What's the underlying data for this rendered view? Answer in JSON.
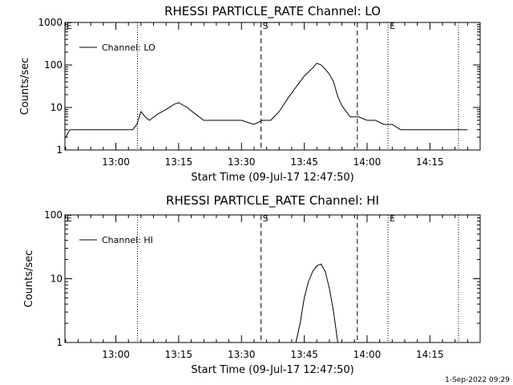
{
  "footer": "1-Sep-2022 09:29",
  "chart_data": [
    {
      "type": "line",
      "title": "RHESSI PARTICLE_RATE Channel: LO",
      "xlabel": "Start Time (09-Jul-17 12:47:50)",
      "ylabel": "Counts/sec",
      "yscale": "log",
      "ylim": [
        1,
        1000
      ],
      "y_ticks": [
        "1",
        "10",
        "100",
        "1000"
      ],
      "xlim": [
        "12:47:50",
        "14:27:00"
      ],
      "x_ticks": [
        "13:00",
        "13:15",
        "13:30",
        "13:45",
        "14:00",
        "14:15"
      ],
      "legend": "top-left",
      "series": [
        {
          "name": "Channel: LO",
          "x": [
            "12:48",
            "12:49",
            "12:50",
            "12:52",
            "12:54",
            "12:56",
            "12:58",
            "13:00",
            "13:02",
            "13:04",
            "13:05",
            "13:06",
            "13:07",
            "13:08",
            "13:10",
            "13:12",
            "13:14",
            "13:15",
            "13:17",
            "13:19",
            "13:21",
            "13:24",
            "13:27",
            "13:30",
            "13:33",
            "13:35",
            "13:37",
            "13:39",
            "13:41",
            "13:43",
            "13:45",
            "13:47",
            "13:48",
            "13:49",
            "13:50",
            "13:51",
            "13:52",
            "13:53",
            "13:54",
            "13:55",
            "13:56",
            "13:58",
            "14:00",
            "14:02",
            "14:04",
            "14:06",
            "14:08",
            "14:10",
            "14:12",
            "14:14",
            "14:16",
            "14:18",
            "14:20",
            "14:22",
            "14:24"
          ],
          "values": [
            2,
            3,
            3,
            3,
            3,
            3,
            3,
            3,
            3,
            3,
            4,
            8,
            6,
            5,
            7,
            9,
            12,
            13,
            10,
            7,
            5,
            5,
            5,
            5,
            4,
            5,
            5,
            8,
            16,
            30,
            55,
            85,
            110,
            100,
            80,
            60,
            40,
            18,
            11,
            8,
            6,
            6,
            5,
            5,
            4,
            4,
            3,
            3,
            3,
            3,
            3,
            3,
            3,
            3,
            3
          ]
        }
      ],
      "annotations": [
        {
          "label": "E",
          "x": "12:47:50",
          "style": "dotted"
        },
        {
          "label": "",
          "x": "13:05:10",
          "style": "dotted"
        },
        {
          "label": "S",
          "x": "13:34:40",
          "style": "dashed"
        },
        {
          "label": "",
          "x": "13:57:40",
          "style": "dashed"
        },
        {
          "label": "E",
          "x": "14:05:00",
          "style": "dotted"
        },
        {
          "label": "",
          "x": "14:21:50",
          "style": "dotted"
        }
      ]
    },
    {
      "type": "line",
      "title": "RHESSI PARTICLE_RATE Channel: HI",
      "xlabel": "Start Time (09-Jul-17 12:47:50)",
      "ylabel": "Counts/sec",
      "yscale": "log",
      "ylim": [
        1,
        100
      ],
      "y_ticks": [
        "1",
        "10",
        "100"
      ],
      "xlim": [
        "12:47:50",
        "14:27:00"
      ],
      "x_ticks": [
        "13:00",
        "13:15",
        "13:30",
        "13:45",
        "14:00",
        "14:15"
      ],
      "legend": "top-left",
      "series": [
        {
          "name": "Channel: HI",
          "x": [
            "13:43",
            "13:44",
            "13:45",
            "13:46",
            "13:47",
            "13:48",
            "13:49",
            "13:50",
            "13:51",
            "13:52",
            "13:53"
          ],
          "values": [
            1,
            2,
            5,
            9,
            13,
            16,
            17,
            13,
            7,
            3,
            1
          ]
        }
      ],
      "annotations": [
        {
          "label": "E",
          "x": "12:47:50",
          "style": "dotted"
        },
        {
          "label": "",
          "x": "13:05:10",
          "style": "dotted"
        },
        {
          "label": "S",
          "x": "13:34:40",
          "style": "dashed"
        },
        {
          "label": "",
          "x": "13:57:40",
          "style": "dashed"
        },
        {
          "label": "E",
          "x": "14:05:00",
          "style": "dotted"
        },
        {
          "label": "",
          "x": "14:21:50",
          "style": "dotted"
        }
      ]
    }
  ]
}
